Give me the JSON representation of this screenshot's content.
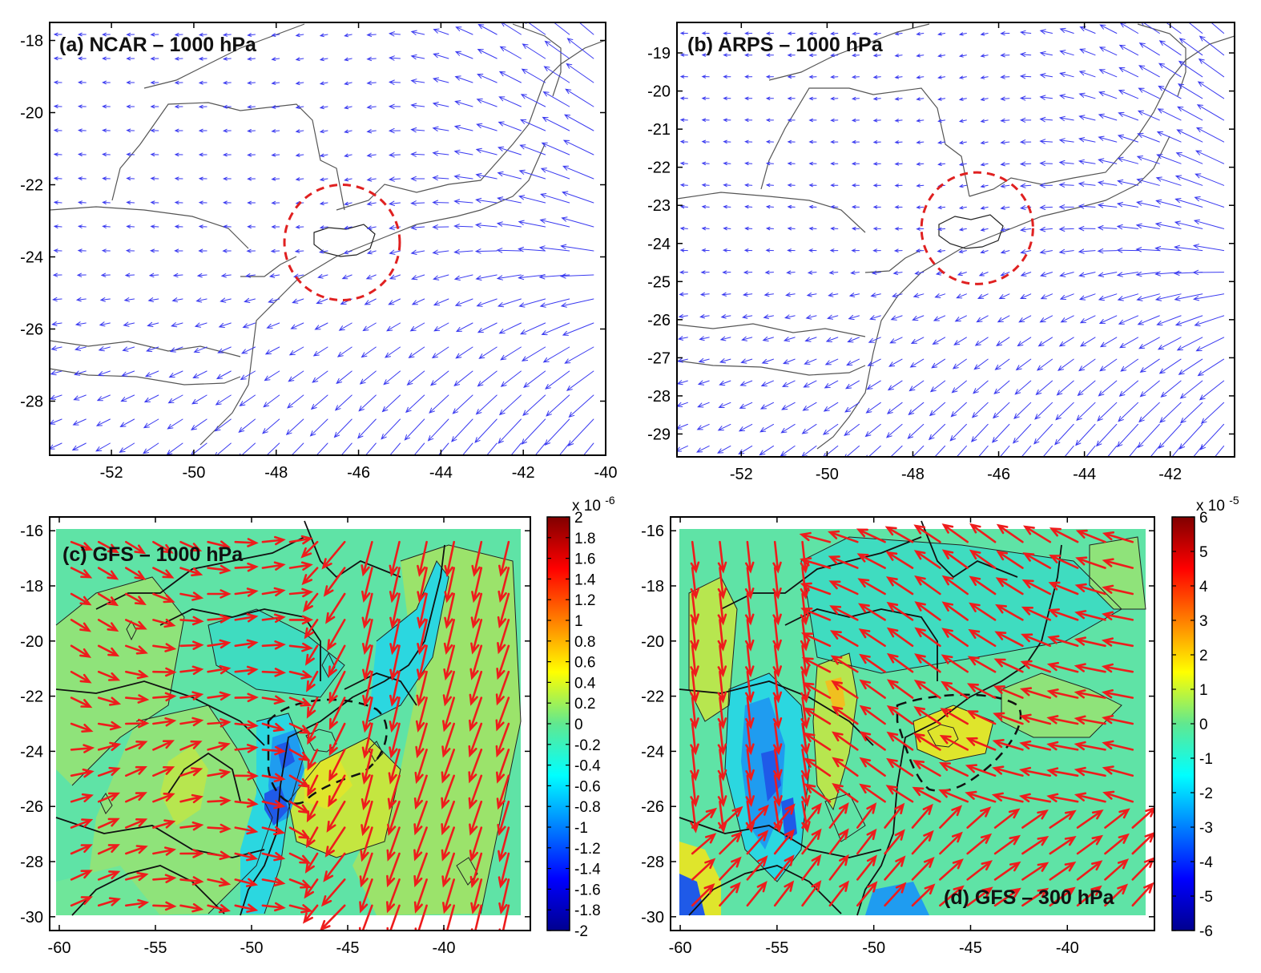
{
  "chart_data": [
    {
      "id": "a",
      "type": "quiver-map",
      "title": "(a) NCAR – 1000 hPa",
      "xlim": [
        -53.5,
        -40
      ],
      "ylim": [
        -29.5,
        -17.5
      ],
      "xticks": [
        -52,
        -50,
        -48,
        -46,
        -44,
        -42,
        -40
      ],
      "xtick_labels": [
        "-52",
        "-50",
        "-48",
        "-46",
        "-44",
        "-42",
        "-40"
      ],
      "yticks": [
        -18,
        -20,
        -22,
        -24,
        -26,
        -28
      ],
      "ytick_labels": [
        "-18",
        "-20",
        "-22",
        "-24",
        "-26",
        "-28"
      ],
      "vector_color": "#3a3af0",
      "highlight": {
        "type": "dashed-circle",
        "color": "#e02020",
        "center": [
          -46.4,
          -23.6
        ],
        "radius_deg": 1.4
      }
    },
    {
      "id": "b",
      "type": "quiver-map",
      "title": "(b) ARPS – 1000 hPa",
      "xlim": [
        -53.5,
        -40.5
      ],
      "ylim": [
        -29.6,
        -18.2
      ],
      "xticks": [
        -52,
        -50,
        -48,
        -46,
        -44,
        -42
      ],
      "xtick_labels": [
        "-52",
        "-50",
        "-48",
        "-46",
        "-44",
        "-42"
      ],
      "yticks": [
        -19,
        -20,
        -21,
        -22,
        -23,
        -24,
        -25,
        -26,
        -27,
        -28,
        -29
      ],
      "ytick_labels": [
        "-19",
        "-20",
        "-21",
        "-22",
        "-23",
        "-24",
        "-25",
        "-26",
        "-27",
        "-28",
        "-29"
      ],
      "vector_color": "#3a3af0",
      "highlight": {
        "type": "dashed-circle",
        "color": "#e02020",
        "center": [
          -46.5,
          -23.6
        ],
        "radius_deg": 1.3
      }
    },
    {
      "id": "c",
      "type": "heatmap",
      "title": "(c) GFS – 1000 hPa",
      "xlim": [
        -60.5,
        -35.5
      ],
      "ylim": [
        -30.5,
        -15.5
      ],
      "xticks": [
        -60,
        -55,
        -50,
        -45,
        -40
      ],
      "xtick_labels": [
        "-60",
        "-55",
        "-50",
        "-45",
        "-40"
      ],
      "yticks": [
        -16,
        -18,
        -20,
        -22,
        -24,
        -26,
        -28,
        -30
      ],
      "ytick_labels": [
        "-16",
        "-18",
        "-20",
        "-22",
        "-24",
        "-26",
        "-28",
        "-30"
      ],
      "vector_color": "#ee1c1c",
      "colorbar": {
        "min": -2,
        "max": 2,
        "exponent_label": "x 10",
        "exponent": "-6",
        "ticks": [
          2,
          1.8,
          1.6,
          1.4,
          1.2,
          1,
          0.8,
          0.6,
          0.4,
          0.2,
          0,
          -0.2,
          -0.4,
          -0.6,
          -0.8,
          -1,
          -1.2,
          -1.4,
          -1.6,
          -1.8,
          -2
        ],
        "tick_labels": [
          "2",
          "1.8",
          "1.6",
          "1.4",
          "1.2",
          "1",
          "0.8",
          "0.6",
          "0.4",
          "0.2",
          "0",
          "-0.2",
          "-0.4",
          "-0.6",
          "-0.8",
          "-1",
          "-1.2",
          "-1.4",
          "-1.6",
          "-1.8",
          "-2"
        ]
      }
    },
    {
      "id": "d",
      "type": "heatmap",
      "title": "(d) GFS – 300 hPa",
      "xlim": [
        -60.5,
        -35.5
      ],
      "ylim": [
        -30.5,
        -15.5
      ],
      "xticks": [
        -60,
        -55,
        -50,
        -45,
        -40
      ],
      "xtick_labels": [
        "-60",
        "-55",
        "-50",
        "-45",
        "-40"
      ],
      "yticks": [
        -16,
        -18,
        -20,
        -22,
        -24,
        -26,
        -28,
        -30
      ],
      "ytick_labels": [
        "-16",
        "-18",
        "-20",
        "-22",
        "-24",
        "-26",
        "-28",
        "-30"
      ],
      "vector_color": "#ee1c1c",
      "colorbar": {
        "min": -6,
        "max": 6,
        "exponent_label": "x 10",
        "exponent": "-5",
        "ticks": [
          6,
          5,
          4,
          3,
          2,
          1,
          0,
          -1,
          -2,
          -3,
          -4,
          -5,
          -6
        ],
        "tick_labels": [
          "6",
          "5",
          "4",
          "3",
          "2",
          "1",
          "0",
          "-1",
          "-2",
          "-3",
          "-4",
          "-5",
          "-6"
        ]
      }
    }
  ]
}
